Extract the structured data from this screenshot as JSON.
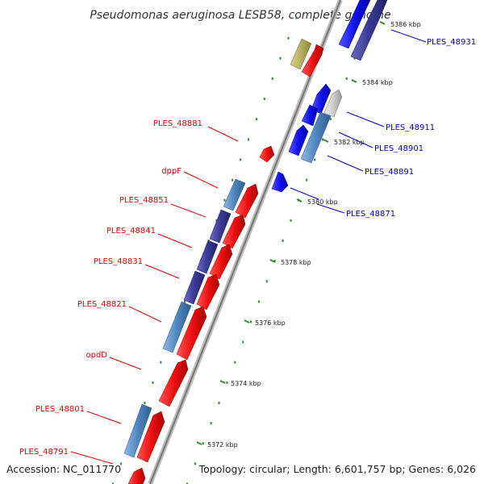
{
  "title": "Pseudomonas aeruginosa LESB58, complete genome",
  "footer": {
    "accession": "Accession: NC_011770",
    "summary": "Topology: circular; Length: 6,601,757 bp; Genes: 6,026"
  },
  "colors": {
    "backbone": "#999999",
    "forward_cds": "#ee1111",
    "reverse_cds": "#1111ee",
    "steelblue_cds": "#4f86bf",
    "slate_cds": "#3a3a96",
    "pale_cds": "#cccccc",
    "olive_cds": "#b8b060",
    "ticks": "#2e8b2e",
    "label_red": "#dd0000",
    "label_blue": "#0000cc"
  },
  "scale_labels": [
    "5386 kbp",
    "5384 kbp",
    "5382 kbp",
    "5380 kbp",
    "5378 kbp",
    "5376 kbp",
    "5374 kbp",
    "5372 kbp"
  ],
  "labels_left": [
    "PLES_48881",
    "dppF",
    "PLES_48851",
    "PLES_48841",
    "PLES_48831",
    "PLES_48821",
    "opdD",
    "PLES_48801",
    "PLES_48791"
  ],
  "labels_right": [
    "PLES_48931",
    "PLES_48911",
    "PLES_48901",
    "PLES_48891",
    "PLES_48871"
  ]
}
